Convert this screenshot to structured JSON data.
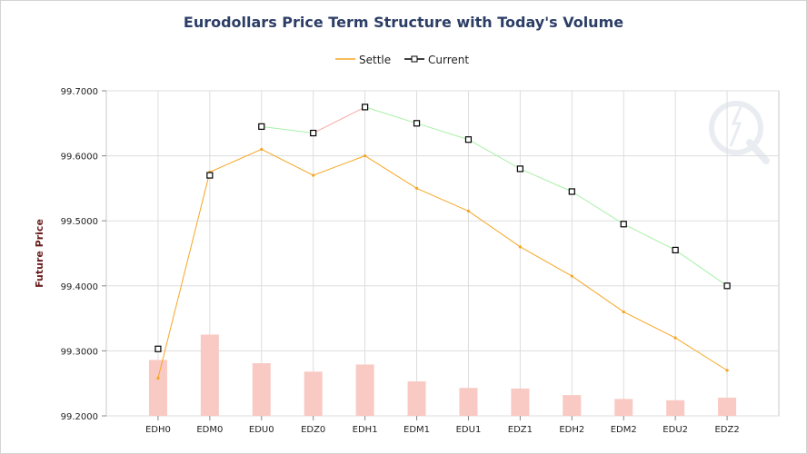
{
  "chart_data": {
    "type": "line",
    "title": "Eurodollars Price Term Structure with Today's Volume",
    "xlabel": "",
    "ylabel": "Future Price",
    "categories": [
      "EDH0",
      "EDM0",
      "EDU0",
      "EDZ0",
      "EDH1",
      "EDM1",
      "EDU1",
      "EDZ1",
      "EDH2",
      "EDM2",
      "EDU2",
      "EDZ2"
    ],
    "ylim": [
      99.2,
      99.7
    ],
    "yticks": [
      "99.2000",
      "99.3000",
      "99.4000",
      "99.5000",
      "99.6000",
      "99.7000"
    ],
    "grid": true,
    "legend": "top-center",
    "series": [
      {
        "name": "Settle",
        "type": "line",
        "color": "#f5a623",
        "values": [
          99.258,
          99.575,
          99.61,
          99.57,
          99.6,
          99.55,
          99.515,
          99.46,
          99.415,
          99.36,
          99.32,
          99.27
        ]
      },
      {
        "name": "Current",
        "type": "line-markers",
        "marker_color": "#000000",
        "segment_colors": {
          "up": "#f4a8a8",
          "down": "#a8f0a8"
        },
        "values": [
          99.303,
          99.57,
          99.645,
          99.635,
          99.675,
          99.65,
          99.625,
          99.58,
          99.545,
          99.495,
          99.455,
          99.4
        ],
        "segments_drawn": [
          false,
          false,
          true,
          true,
          true,
          true,
          true,
          true,
          true,
          true,
          true
        ]
      },
      {
        "name": "",
        "type": "volume-bars",
        "color": "#f9c9c4",
        "values": [
          99.286,
          99.325,
          99.281,
          99.268,
          99.279,
          99.253,
          99.243,
          99.242,
          99.232,
          99.226,
          99.224,
          99.228
        ]
      }
    ]
  },
  "legend": {
    "settle_label": "Settle",
    "current_label": "Current"
  },
  "watermark_icon": "q-logo-icon"
}
